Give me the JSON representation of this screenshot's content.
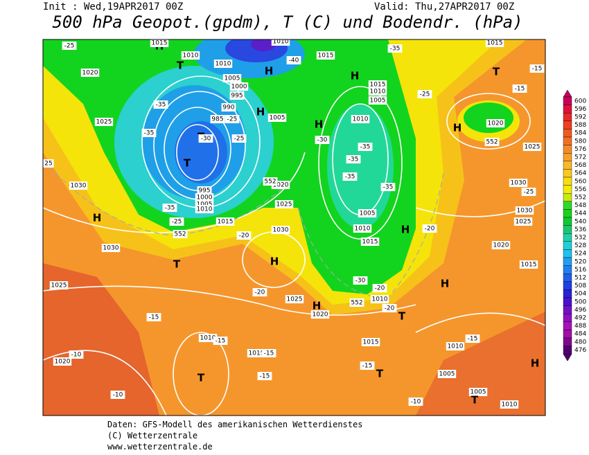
{
  "header": {
    "init": "Init : Wed,19APR2017 00Z",
    "valid": "Valid: Thu,27APR2017 00Z",
    "title": "500 hPa Geopot.(gpdm), T (C) und Bodendr. (hPa)"
  },
  "colorbar": {
    "levels": [
      600,
      596,
      592,
      588,
      584,
      580,
      576,
      572,
      568,
      564,
      560,
      556,
      552,
      548,
      544,
      540,
      536,
      532,
      528,
      524,
      520,
      516,
      512,
      508,
      504,
      500,
      496,
      492,
      488,
      484,
      480,
      476
    ]
  },
  "map_labels": [
    "H",
    "T",
    "1010",
    "1010",
    "H",
    "-40",
    "1015",
    "H",
    "1015",
    "1010",
    "1005",
    "1005",
    "1000",
    "995",
    "990",
    "985",
    "H",
    "1005",
    "H",
    "1010",
    "T",
    "T",
    "995",
    "1000",
    "1005",
    "1010",
    "1020",
    "1025",
    "1030",
    "H",
    "1015",
    "1020",
    "1025",
    "1030",
    "H",
    "1005",
    "1010",
    "1015",
    "H",
    "T",
    "1030",
    "1025",
    "1025",
    "H",
    "1020",
    "1010",
    "T",
    "1010",
    "1015",
    "T",
    "1020",
    "1015",
    "T",
    "1010",
    "1005",
    "1005",
    "T",
    "1010",
    "H",
    "H",
    "1015",
    "1020",
    "1025",
    "1030",
    "1030",
    "1025",
    "1020",
    "H",
    "T",
    "1015",
    "1015",
    "1010",
    "-25",
    "-35",
    "-35",
    "-25",
    "-30",
    "-30",
    "-35",
    "-35",
    "-35",
    "-35",
    "-25",
    "-35",
    "-15",
    "-15",
    "-25",
    "-20",
    "-25",
    "-20",
    "-20",
    "-30",
    "-20",
    "-20",
    "-15",
    "-15",
    "-15",
    "-15",
    "-10",
    "-10",
    "-15",
    "-10",
    "-15",
    "25",
    "-35",
    "552",
    "552",
    "552",
    "552",
    "-25"
  ],
  "footer": [
    "Daten: GFS-Modell des amerikanischen Wetterdienstes",
    "(C) Wetterzentrale",
    "www.wetterzentrale.de"
  ]
}
